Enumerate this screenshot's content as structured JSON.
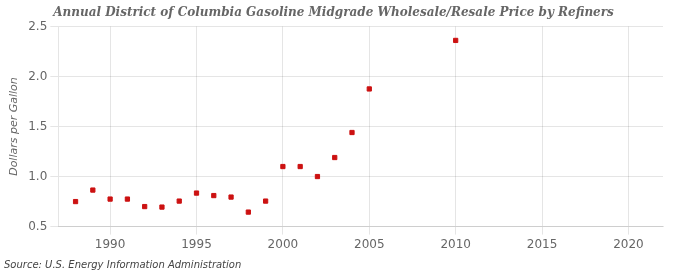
{
  "chart_data": {
    "type": "scatter",
    "title": "Annual District of Columbia Gasoline Midgrade Wholesale/Resale Price by Refiners",
    "ylabel": "Dollars per Gallon",
    "annotation": "Source: U.S. Energy Information Administration",
    "x": [
      1988,
      1989,
      1990,
      1991,
      1992,
      1993,
      1994,
      1995,
      1996,
      1997,
      1998,
      1999,
      2000,
      2001,
      2002,
      2003,
      2004,
      2005,
      2010
    ],
    "values": [
      0.75,
      0.865,
      0.775,
      0.775,
      0.7,
      0.695,
      0.755,
      0.835,
      0.81,
      0.795,
      0.645,
      0.755,
      1.1,
      1.1,
      1.0,
      1.19,
      1.44,
      1.875,
      2.36
    ],
    "color": "#cc1111",
    "marker": "square",
    "xlim": [
      1987,
      2022
    ],
    "xticks": [
      1990,
      1995,
      2000,
      2005,
      2010,
      2015,
      2020
    ],
    "ylim": [
      0.5,
      2.5
    ],
    "yticks": [
      0.5,
      {
        "value": 1.0,
        "label": "1.0"
      },
      1.5,
      {
        "value": 2.0,
        "label": "2.0"
      },
      2.5
    ],
    "grid": true
  }
}
